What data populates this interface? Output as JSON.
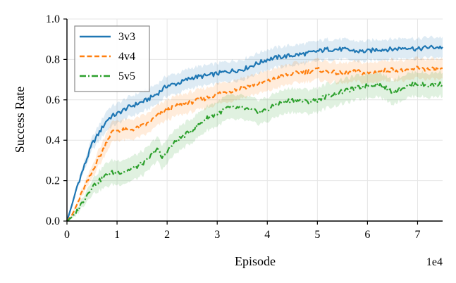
{
  "chart_data": {
    "type": "line",
    "xlabel": "Episode",
    "ylabel": "Success Rate",
    "x_exponent_label": "1e4",
    "xlim": [
      0,
      75000
    ],
    "ylim": [
      0.0,
      1.0
    ],
    "grid": true,
    "legend_position": "top-left",
    "x_ticks": [
      {
        "value": 0,
        "label": "0"
      },
      {
        "value": 10000,
        "label": "1"
      },
      {
        "value": 20000,
        "label": "2"
      },
      {
        "value": 30000,
        "label": "3"
      },
      {
        "value": 40000,
        "label": "4"
      },
      {
        "value": 50000,
        "label": "5"
      },
      {
        "value": 60000,
        "label": "6"
      },
      {
        "value": 70000,
        "label": "7"
      }
    ],
    "y_ticks": [
      {
        "value": 0.0,
        "label": "0.0"
      },
      {
        "value": 0.2,
        "label": "0.2"
      },
      {
        "value": 0.4,
        "label": "0.4"
      },
      {
        "value": 0.6,
        "label": "0.6"
      },
      {
        "value": 0.8,
        "label": "0.8"
      },
      {
        "value": 1.0,
        "label": "1.0"
      }
    ],
    "series": [
      {
        "name": "3v3",
        "color": "#1f77b4",
        "dash": "solid",
        "band_width": 0.05,
        "x": [
          0,
          1000,
          2000,
          3000,
          4000,
          5000,
          6000,
          7000,
          8000,
          9000,
          10000,
          12000,
          14000,
          16000,
          18000,
          20000,
          22000,
          25000,
          28000,
          30000,
          32000,
          35000,
          38000,
          40000,
          42000,
          45000,
          48000,
          50000,
          52000,
          55000,
          58000,
          60000,
          62000,
          65000,
          68000,
          70000,
          72000,
          75000
        ],
        "y": [
          0.0,
          0.08,
          0.17,
          0.24,
          0.31,
          0.38,
          0.42,
          0.46,
          0.5,
          0.52,
          0.53,
          0.56,
          0.58,
          0.6,
          0.63,
          0.67,
          0.68,
          0.71,
          0.72,
          0.73,
          0.74,
          0.75,
          0.78,
          0.8,
          0.81,
          0.82,
          0.83,
          0.84,
          0.85,
          0.85,
          0.84,
          0.84,
          0.85,
          0.85,
          0.86,
          0.85,
          0.86,
          0.86
        ]
      },
      {
        "name": "4v4",
        "color": "#ff7f0e",
        "dash": "dashed",
        "band_width": 0.05,
        "x": [
          0,
          1000,
          2000,
          3000,
          4000,
          5000,
          6000,
          7000,
          8000,
          9000,
          10000,
          12000,
          14000,
          16000,
          18000,
          20000,
          22000,
          25000,
          28000,
          30000,
          32000,
          35000,
          38000,
          40000,
          42000,
          45000,
          48000,
          50000,
          52000,
          55000,
          58000,
          60000,
          62000,
          65000,
          68000,
          70000,
          72000,
          75000
        ],
        "y": [
          0.0,
          0.03,
          0.08,
          0.14,
          0.19,
          0.24,
          0.3,
          0.34,
          0.4,
          0.44,
          0.45,
          0.45,
          0.46,
          0.48,
          0.52,
          0.55,
          0.57,
          0.59,
          0.61,
          0.63,
          0.64,
          0.66,
          0.68,
          0.69,
          0.71,
          0.73,
          0.74,
          0.75,
          0.74,
          0.73,
          0.74,
          0.73,
          0.74,
          0.75,
          0.74,
          0.76,
          0.75,
          0.75
        ]
      },
      {
        "name": "5v5",
        "color": "#2ca02c",
        "dash": "dashdot",
        "band_width": 0.06,
        "x": [
          0,
          1000,
          2000,
          3000,
          4000,
          5000,
          6000,
          7000,
          8000,
          9000,
          10000,
          12000,
          14000,
          16000,
          17000,
          18000,
          19000,
          20000,
          22000,
          25000,
          28000,
          30000,
          32000,
          35000,
          38000,
          40000,
          42000,
          45000,
          48000,
          50000,
          52000,
          55000,
          58000,
          60000,
          62000,
          65000,
          68000,
          70000,
          72000,
          75000
        ],
        "y": [
          0.0,
          0.02,
          0.05,
          0.09,
          0.13,
          0.17,
          0.19,
          0.21,
          0.23,
          0.24,
          0.24,
          0.25,
          0.27,
          0.3,
          0.33,
          0.36,
          0.31,
          0.35,
          0.4,
          0.45,
          0.51,
          0.53,
          0.56,
          0.56,
          0.54,
          0.55,
          0.58,
          0.6,
          0.59,
          0.6,
          0.62,
          0.64,
          0.66,
          0.67,
          0.68,
          0.64,
          0.67,
          0.68,
          0.67,
          0.68
        ]
      }
    ]
  }
}
